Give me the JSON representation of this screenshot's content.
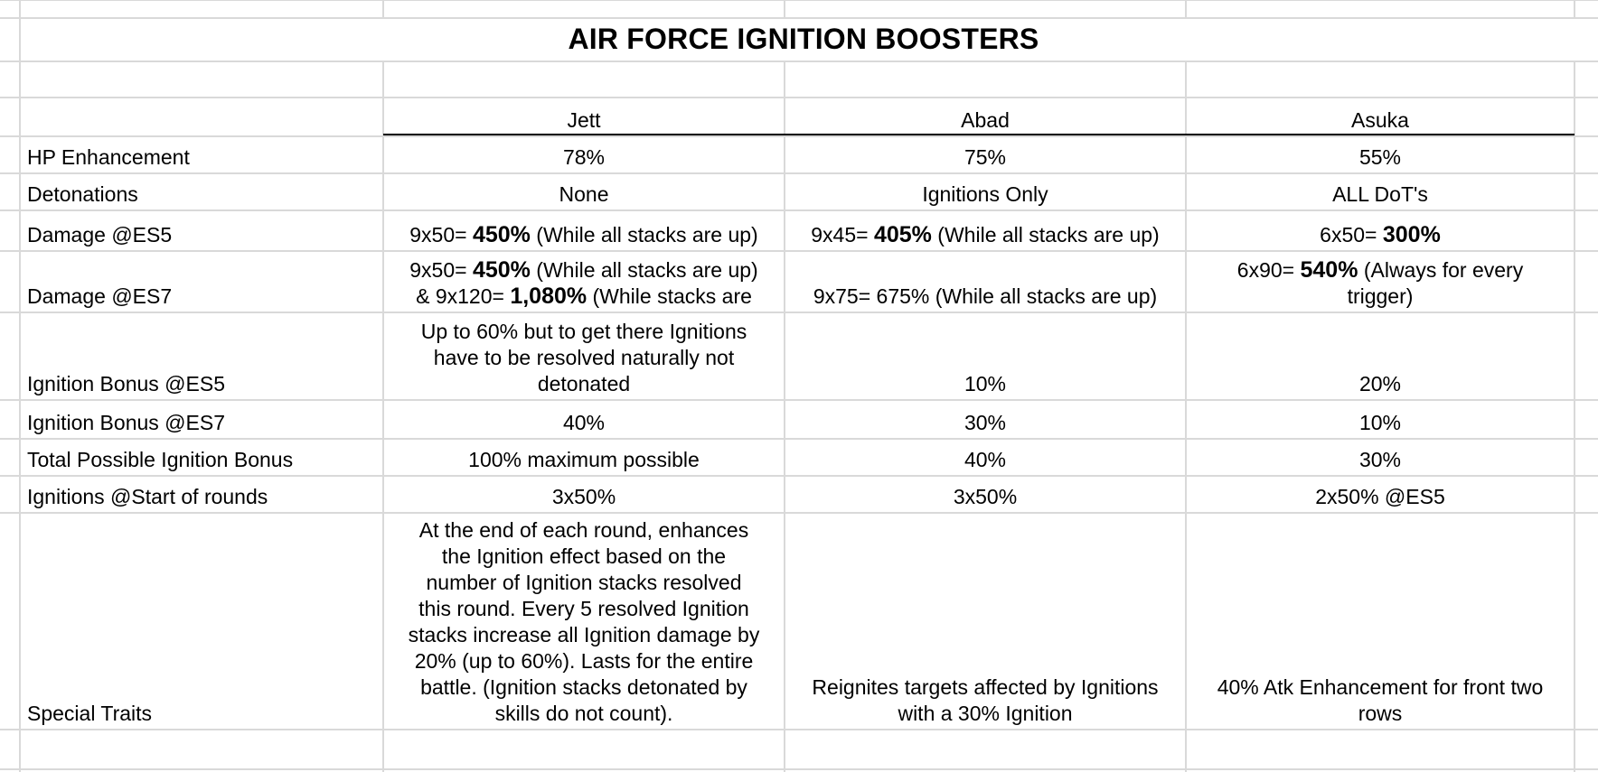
{
  "title": "AIR FORCE IGNITION BOOSTERS",
  "columns": [
    "Jett",
    "Abad",
    "Asuka"
  ],
  "rows": [
    {
      "label": "HP Enhancement",
      "cells": [
        {
          "lines": [
            [
              {
                "t": "78%"
              }
            ]
          ]
        },
        {
          "lines": [
            [
              {
                "t": "75%"
              }
            ]
          ]
        },
        {
          "lines": [
            [
              {
                "t": "55%"
              }
            ]
          ]
        }
      ]
    },
    {
      "label": "Detonations",
      "cells": [
        {
          "lines": [
            [
              {
                "t": "None"
              }
            ]
          ]
        },
        {
          "lines": [
            [
              {
                "t": "Ignitions Only"
              }
            ]
          ]
        },
        {
          "lines": [
            [
              {
                "t": "ALL DoT's"
              }
            ]
          ]
        }
      ]
    },
    {
      "label": "Damage @ES5",
      "cells": [
        {
          "lines": [
            [
              {
                "t": "9x50= "
              },
              {
                "t": "450%",
                "b": true
              },
              {
                "t": " (While all stacks are up)"
              }
            ]
          ]
        },
        {
          "lines": [
            [
              {
                "t": "9x45= "
              },
              {
                "t": "405%",
                "b": true
              },
              {
                "t": " (While all stacks are up)"
              }
            ]
          ]
        },
        {
          "lines": [
            [
              {
                "t": "6x50= "
              },
              {
                "t": "300%",
                "b": true
              }
            ]
          ]
        }
      ]
    },
    {
      "label": "Damage @ES7",
      "cells": [
        {
          "lines": [
            [
              {
                "t": "9x50= "
              },
              {
                "t": "450%",
                "b": true
              },
              {
                "t": " (While all stacks are up)"
              }
            ],
            [
              {
                "t": "& 9x120= "
              },
              {
                "t": "1,080%",
                "b": true
              },
              {
                "t": " (While stacks are"
              }
            ]
          ]
        },
        {
          "lines": [
            [
              {
                "t": "9x75= 675% (While all stacks are up)"
              }
            ]
          ]
        },
        {
          "lines": [
            [
              {
                "t": "6x90= "
              },
              {
                "t": "540%",
                "b": true
              },
              {
                "t": " (Always for every"
              }
            ],
            [
              {
                "t": "trigger)"
              }
            ]
          ]
        }
      ]
    },
    {
      "label": "Ignition Bonus @ES5",
      "cells": [
        {
          "lines": [
            [
              {
                "t": "Up to 60% but to get there Ignitions"
              }
            ],
            [
              {
                "t": "have to be resolved naturally not"
              }
            ],
            [
              {
                "t": "detonated"
              }
            ]
          ]
        },
        {
          "lines": [
            [
              {
                "t": "10%"
              }
            ]
          ]
        },
        {
          "lines": [
            [
              {
                "t": "20%"
              }
            ]
          ]
        }
      ]
    },
    {
      "label": "Ignition Bonus @ES7",
      "cells": [
        {
          "lines": [
            [
              {
                "t": "40%"
              }
            ]
          ]
        },
        {
          "lines": [
            [
              {
                "t": "30%"
              }
            ]
          ]
        },
        {
          "lines": [
            [
              {
                "t": "10%"
              }
            ]
          ]
        }
      ]
    },
    {
      "label": "Total Possible Ignition Bonus",
      "cells": [
        {
          "lines": [
            [
              {
                "t": "100% maximum possible"
              }
            ]
          ]
        },
        {
          "lines": [
            [
              {
                "t": "40%"
              }
            ]
          ]
        },
        {
          "lines": [
            [
              {
                "t": "30%"
              }
            ]
          ]
        }
      ]
    },
    {
      "label": "Ignitions @Start of rounds",
      "cells": [
        {
          "lines": [
            [
              {
                "t": "3x50%"
              }
            ]
          ]
        },
        {
          "lines": [
            [
              {
                "t": "3x50%"
              }
            ]
          ]
        },
        {
          "lines": [
            [
              {
                "t": "2x50% @ES5"
              }
            ]
          ]
        }
      ]
    },
    {
      "label": "Special Traits",
      "cells": [
        {
          "lines": [
            [
              {
                "t": "At the end of each round, enhances"
              }
            ],
            [
              {
                "t": "the Ignition effect based on the"
              }
            ],
            [
              {
                "t": "number of Ignition stacks resolved"
              }
            ],
            [
              {
                "t": "this round. Every 5 resolved Ignition"
              }
            ],
            [
              {
                "t": "stacks increase all Ignition damage by"
              }
            ],
            [
              {
                "t": "20% (up to 60%). Lasts for the entire"
              }
            ],
            [
              {
                "t": "battle. (Ignition stacks detonated by"
              }
            ],
            [
              {
                "t": "skills do not count)."
              }
            ]
          ]
        },
        {
          "lines": [
            [
              {
                "t": "Reignites targets affected by Ignitions"
              }
            ],
            [
              {
                "t": "with a 30% Ignition"
              }
            ]
          ]
        },
        {
          "lines": [
            [
              {
                "t": "40% Atk Enhancement for front two"
              }
            ],
            [
              {
                "t": "rows"
              }
            ]
          ]
        }
      ]
    }
  ]
}
